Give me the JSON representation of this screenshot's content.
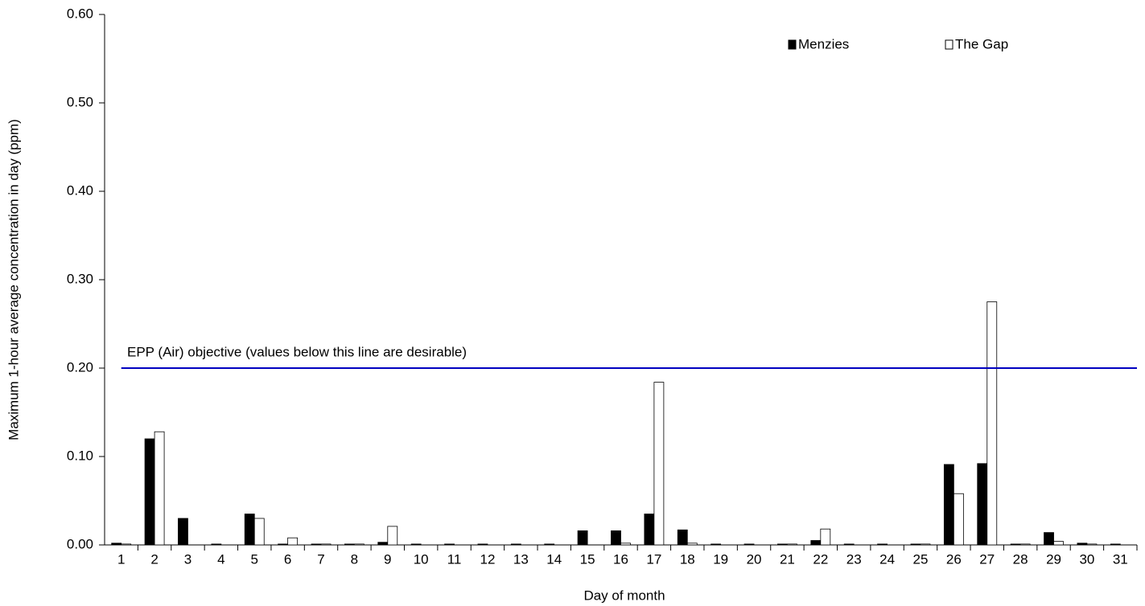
{
  "chart_data": {
    "type": "bar",
    "x_label": "Day of month",
    "y_label": "Maximum 1-hour average concentration in day (ppm)",
    "categories": [
      "1",
      "2",
      "3",
      "4",
      "5",
      "6",
      "7",
      "8",
      "9",
      "10",
      "11",
      "12",
      "13",
      "14",
      "15",
      "16",
      "17",
      "18",
      "19",
      "20",
      "21",
      "22",
      "23",
      "24",
      "25",
      "26",
      "27",
      "28",
      "29",
      "30",
      "31"
    ],
    "series": [
      {
        "name": "Menzies",
        "color": "#000000",
        "values": [
          0.002,
          0.12,
          0.03,
          0.001,
          0.035,
          0.001,
          0.001,
          0.001,
          0.003,
          0.001,
          0.001,
          0.001,
          0.001,
          0.001,
          0.016,
          0.016,
          0.035,
          0.017,
          0.001,
          0.001,
          0.001,
          0.005,
          0.001,
          0.001,
          0.001,
          0.091,
          0.092,
          0.001,
          0.014,
          0.002,
          0.001
        ]
      },
      {
        "name": "The Gap",
        "color": "#ffffff",
        "values": [
          0.001,
          0.128,
          0,
          0,
          0.03,
          0.008,
          0.001,
          0.001,
          0.021,
          0,
          0,
          0,
          0,
          0,
          0,
          0.002,
          0.184,
          0.002,
          0,
          0,
          0.001,
          0.018,
          0,
          0,
          0.001,
          0.058,
          0.275,
          0.001,
          0.004,
          0.001,
          0
        ]
      }
    ],
    "reference_line": {
      "value": 0.2,
      "label": "EPP (Air) objective (values below this line are desirable)",
      "color": "#0000c0"
    },
    "ylim": [
      0,
      0.6
    ],
    "yticks": [
      {
        "value": 0,
        "label": "0.00"
      },
      {
        "value": 0.1,
        "label": "0.10"
      },
      {
        "value": 0.2,
        "label": "0.20"
      },
      {
        "value": 0.3,
        "label": "0.30"
      },
      {
        "value": 0.4,
        "label": "0.40"
      },
      {
        "value": 0.5,
        "label": "0.50"
      },
      {
        "value": 0.6,
        "label": "0.60"
      }
    ],
    "legend": "top-right"
  }
}
